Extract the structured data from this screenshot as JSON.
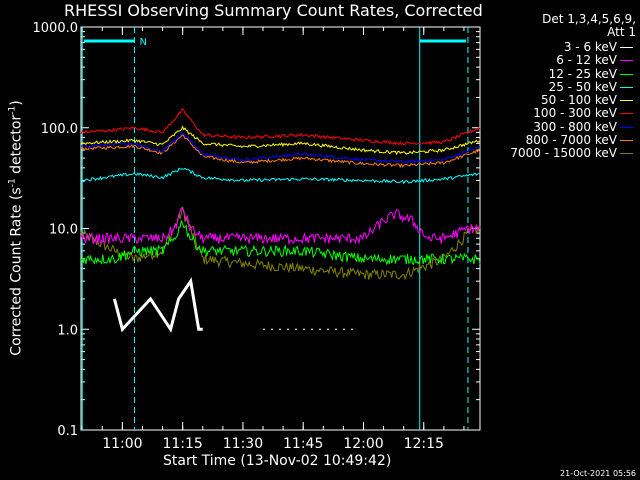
{
  "chart_data": {
    "type": "line",
    "title": "RHESSI Observing Summary Count Rates, Corrected",
    "xlabel": "Start Time (13-Nov-02 10:49:42)",
    "ylabel_main": "Corrected Count Rate (s",
    "ylabel_sup1": "-1",
    "ylabel_mid": " detector",
    "ylabel_sup2": "-1",
    "ylabel_end": ")",
    "yscale": "log",
    "ylim": [
      0.1,
      1000
    ],
    "xlim": [
      "10:49:42",
      "12:29:00"
    ],
    "x_ticks": [
      "11:00",
      "11:15",
      "11:30",
      "11:45",
      "12:00",
      "12:15"
    ],
    "y_ticks": [
      "1000.0",
      "100.0",
      "10.0",
      "1.0",
      "0.1"
    ],
    "legend_header": [
      "Det 1,3,4,5,6,9,",
      "Att 1"
    ],
    "legend_placement": "right",
    "flags": [
      {
        "label": "N",
        "color": "#00ffff",
        "from": "10:49:42",
        "to": "11:03:00"
      },
      {
        "label": "",
        "color": "#00ffff",
        "from": "12:14:00",
        "to": "12:29:00"
      }
    ],
    "vlines_solid": [
      "10:50:00",
      "12:14:00"
    ],
    "vlines_dashed": [
      "11:03:00",
      "12:26:00"
    ],
    "series": [
      {
        "name": "3 - 6 keV",
        "color": "#ffffff",
        "segments": [
          [
            "10:58",
            2.0,
            "11:00",
            1.0,
            "11:07",
            2.0,
            "11:12",
            1.0,
            "11:14",
            2.0,
            "11:17",
            3.0,
            "11:19",
            1.0,
            "11:20",
            1.0
          ],
          [
            "11:35",
            1.0,
            "11:58",
            1.0
          ]
        ]
      },
      {
        "name": "6 - 12 keV",
        "color": "#ff00ff",
        "points": [
          [
            "10:49:42",
            8
          ],
          [
            "10:58",
            8
          ],
          [
            "11:03",
            8
          ],
          [
            "11:10",
            8
          ],
          [
            "11:13",
            10
          ],
          [
            "11:15",
            16
          ],
          [
            "11:17",
            10
          ],
          [
            "11:20",
            8
          ],
          [
            "11:30",
            8
          ],
          [
            "11:45",
            8
          ],
          [
            "12:00",
            8
          ],
          [
            "12:05",
            12
          ],
          [
            "12:08",
            14
          ],
          [
            "12:12",
            12
          ],
          [
            "12:16",
            8
          ],
          [
            "12:20",
            8
          ],
          [
            "12:26",
            10
          ],
          [
            "12:29",
            10
          ]
        ]
      },
      {
        "name": "12 - 25 keV",
        "color": "#00ff00",
        "points": [
          [
            "10:49:42",
            5
          ],
          [
            "10:58",
            5
          ],
          [
            "11:03",
            6
          ],
          [
            "11:10",
            6
          ],
          [
            "11:13",
            8
          ],
          [
            "11:15",
            12
          ],
          [
            "11:17",
            8
          ],
          [
            "11:20",
            6
          ],
          [
            "11:30",
            6
          ],
          [
            "11:45",
            6
          ],
          [
            "12:00",
            5
          ],
          [
            "12:10",
            5
          ],
          [
            "12:20",
            5
          ],
          [
            "12:26",
            5
          ],
          [
            "12:29",
            5
          ]
        ]
      },
      {
        "name": "25 - 50 keV",
        "color": "#00ffff",
        "points": [
          [
            "10:49:42",
            30
          ],
          [
            "10:58",
            33
          ],
          [
            "11:03",
            35
          ],
          [
            "11:10",
            32
          ],
          [
            "11:15",
            40
          ],
          [
            "11:20",
            32
          ],
          [
            "11:30",
            30
          ],
          [
            "11:45",
            31
          ],
          [
            "12:00",
            30
          ],
          [
            "12:10",
            29
          ],
          [
            "12:20",
            31
          ],
          [
            "12:29",
            35
          ]
        ]
      },
      {
        "name": "50 - 100 keV",
        "color": "#ffff00",
        "points": [
          [
            "10:49:42",
            70
          ],
          [
            "10:58",
            73
          ],
          [
            "11:03",
            75
          ],
          [
            "11:10",
            68
          ],
          [
            "11:15",
            100
          ],
          [
            "11:20",
            70
          ],
          [
            "11:30",
            65
          ],
          [
            "11:45",
            70
          ],
          [
            "12:00",
            60
          ],
          [
            "12:10",
            56
          ],
          [
            "12:20",
            60
          ],
          [
            "12:29",
            75
          ]
        ]
      },
      {
        "name": "100 - 300 keV",
        "color": "#ff0000",
        "points": [
          [
            "10:49:42",
            90
          ],
          [
            "10:58",
            95
          ],
          [
            "11:03",
            100
          ],
          [
            "11:10",
            90
          ],
          [
            "11:15",
            150
          ],
          [
            "11:20",
            85
          ],
          [
            "11:30",
            80
          ],
          [
            "11:45",
            85
          ],
          [
            "12:00",
            75
          ],
          [
            "12:10",
            70
          ],
          [
            "12:20",
            72
          ],
          [
            "12:29",
            100
          ]
        ]
      },
      {
        "name": "300 - 800 keV",
        "color": "#0000ff",
        "points": [
          [
            "10:49:42",
            65
          ],
          [
            "10:58",
            68
          ],
          [
            "11:03",
            70
          ],
          [
            "11:10",
            58
          ],
          [
            "11:15",
            90
          ],
          [
            "11:20",
            55
          ],
          [
            "11:30",
            48
          ],
          [
            "11:45",
            55
          ],
          [
            "12:00",
            48
          ],
          [
            "12:10",
            46
          ],
          [
            "12:20",
            48
          ],
          [
            "12:29",
            65
          ]
        ]
      },
      {
        "name": "800 - 7000 keV",
        "color": "#ff8000",
        "points": [
          [
            "10:49:42",
            62
          ],
          [
            "10:58",
            64
          ],
          [
            "11:03",
            66
          ],
          [
            "11:10",
            56
          ],
          [
            "11:15",
            85
          ],
          [
            "11:20",
            52
          ],
          [
            "11:30",
            45
          ],
          [
            "11:45",
            50
          ],
          [
            "12:00",
            44
          ],
          [
            "12:10",
            42
          ],
          [
            "12:20",
            45
          ],
          [
            "12:29",
            60
          ]
        ]
      },
      {
        "name": "7000 - 15000 keV",
        "color": "#808000",
        "points": [
          [
            "10:49:42",
            9
          ],
          [
            "10:58",
            6
          ],
          [
            "11:03",
            5
          ],
          [
            "11:10",
            6
          ],
          [
            "11:15",
            15
          ],
          [
            "11:20",
            5
          ],
          [
            "11:30",
            4.5
          ],
          [
            "11:45",
            4
          ],
          [
            "12:00",
            3.5
          ],
          [
            "12:10",
            3.5
          ],
          [
            "12:20",
            5
          ],
          [
            "12:26",
            9
          ],
          [
            "12:29",
            10
          ]
        ]
      }
    ]
  },
  "timestamp": "21-Oct-2021 05:56"
}
